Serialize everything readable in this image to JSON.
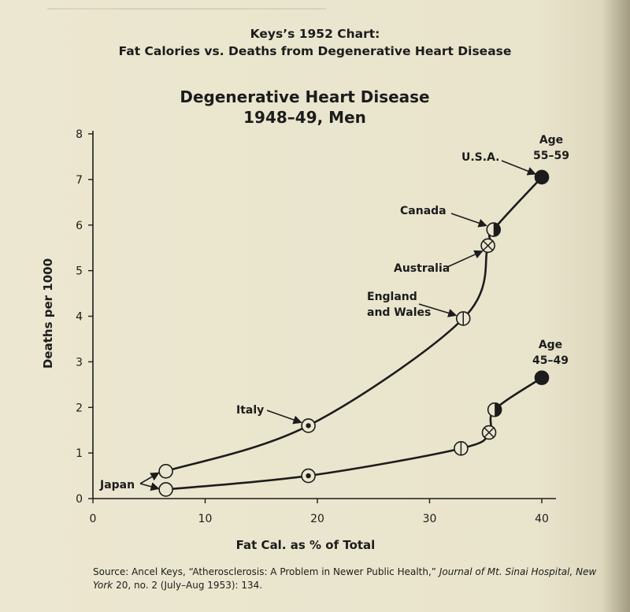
{
  "figure": {
    "title": "Keys’s 1952 Chart:",
    "subtitle": "Fat Calories vs. Deaths from Degenerative Heart Disease",
    "source_prefix": "Source: Ancel Keys, “Atherosclerosis: A Problem in Newer Public Health,”",
    "source_journal": "Journal of Mt. Sinai Hospital, New York",
    "source_suffix": "20, no. 2 (July–Aug 1953): 134."
  },
  "chart_data": {
    "type": "scatter",
    "title": [
      "Degenerative Heart Disease",
      "1948–49, Men"
    ],
    "xlabel": "Fat Cal. as % of Total",
    "ylabel": "Deaths per 1000",
    "xlim": [
      0,
      40
    ],
    "ylim": [
      0,
      8
    ],
    "xticks": [
      "0",
      "10",
      "20",
      "30",
      "40"
    ],
    "yticks": [
      "0",
      "1",
      "2",
      "3",
      "4",
      "5",
      "6",
      "7",
      "8"
    ],
    "grid": false,
    "series": [
      {
        "name": "Age 55–59",
        "curve": true,
        "points": [
          {
            "country": "Japan",
            "x": 6.5,
            "y": 0.6,
            "marker": "open"
          },
          {
            "country": "Italy",
            "x": 19.2,
            "y": 1.6,
            "marker": "dot"
          },
          {
            "country": "England and Wales",
            "x": 33.0,
            "y": 3.95,
            "marker": "vline"
          },
          {
            "country": "Australia",
            "x": 35.2,
            "y": 5.55,
            "marker": "x"
          },
          {
            "country": "Canada",
            "x": 35.7,
            "y": 5.9,
            "marker": "half"
          },
          {
            "country": "U.S.A.",
            "x": 40.0,
            "y": 7.05,
            "marker": "filled"
          }
        ]
      },
      {
        "name": "Age 45–49",
        "curve": true,
        "points": [
          {
            "country": "Japan",
            "x": 6.5,
            "y": 0.2,
            "marker": "open"
          },
          {
            "country": "Italy",
            "x": 19.2,
            "y": 0.5,
            "marker": "dot"
          },
          {
            "country": "England and Wales",
            "x": 32.8,
            "y": 1.1,
            "marker": "vline"
          },
          {
            "country": "Australia",
            "x": 35.3,
            "y": 1.45,
            "marker": "x"
          },
          {
            "country": "Canada",
            "x": 35.8,
            "y": 1.95,
            "marker": "half"
          },
          {
            "country": "U.S.A.",
            "x": 40.0,
            "y": 2.65,
            "marker": "filled"
          }
        ]
      }
    ],
    "annotations": {
      "age_old": [
        "Age",
        "55–59"
      ],
      "age_young": [
        "Age",
        "45–49"
      ],
      "usa": "U.S.A.",
      "canada": "Canada",
      "australia": "Australia",
      "england": [
        "England",
        "and Wales"
      ],
      "italy": "Italy",
      "japan": "Japan"
    }
  },
  "colors": {
    "ink": "#1c1c1c",
    "paper": "#ebe6cf"
  }
}
